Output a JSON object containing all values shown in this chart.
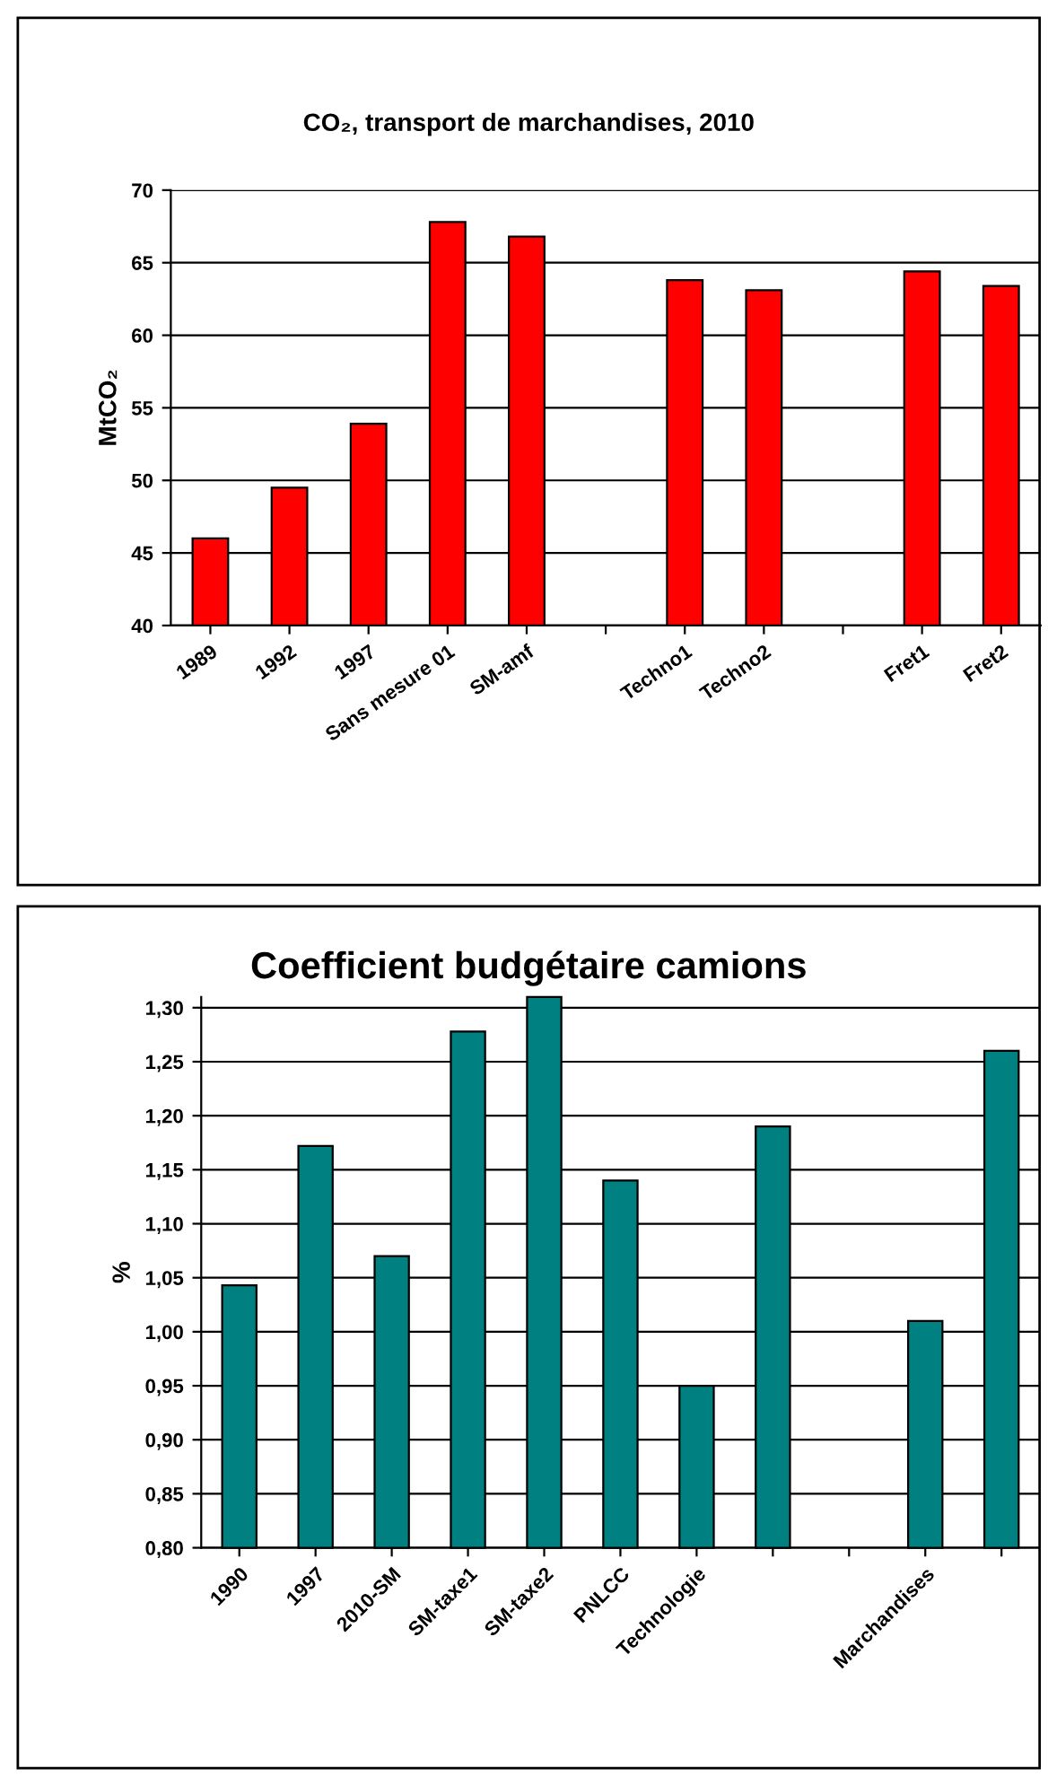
{
  "chart_data": [
    {
      "type": "bar",
      "title": "CO₂, transport de marchandises, 2010",
      "ylabel": "MtCO₂",
      "categories": [
        "1989",
        "1992",
        "1997",
        "Sans mesure 01",
        "SM-amf",
        null,
        "Techno1",
        "Techno2",
        null,
        "Fret1",
        "Fret2"
      ],
      "values": [
        46,
        49.5,
        53.9,
        67.8,
        66.8,
        null,
        63.8,
        63.1,
        null,
        64.4,
        63.4
      ],
      "color": "#ff0000",
      "ylim": [
        40,
        70
      ],
      "yticks": [
        40,
        45,
        50,
        55,
        60,
        65,
        70
      ],
      "grid": "y"
    },
    {
      "type": "bar",
      "title": "Coefficient budgétaire camions",
      "ylabel": "%",
      "categories": [
        "1990",
        "1997",
        "2010-SM",
        "SM-taxe1",
        "SM-taxe2",
        "PNLCC",
        "Technologie",
        null,
        null,
        "Marchandises",
        null
      ],
      "values": [
        1.043,
        1.172,
        1.07,
        1.278,
        1.31,
        1.14,
        0.95,
        1.19,
        null,
        1.01,
        1.26
      ],
      "color": "#008080",
      "ylim": [
        0.8,
        1.31
      ],
      "yticks": [
        {
          "value": 0.8,
          "label": "0,80"
        },
        {
          "value": 0.85,
          "label": "0,85"
        },
        {
          "value": 0.9,
          "label": "0,90"
        },
        {
          "value": 0.95,
          "label": "0,95"
        },
        {
          "value": 1.0,
          "label": "1,00"
        },
        {
          "value": 1.05,
          "label": "1,05"
        },
        {
          "value": 1.1,
          "label": "1,10"
        },
        {
          "value": 1.15,
          "label": "1,15"
        },
        {
          "value": 1.2,
          "label": "1,20"
        },
        {
          "value": 1.25,
          "label": "1,25"
        },
        {
          "value": 1.3,
          "label": "1,30"
        }
      ],
      "grid": "y"
    }
  ]
}
